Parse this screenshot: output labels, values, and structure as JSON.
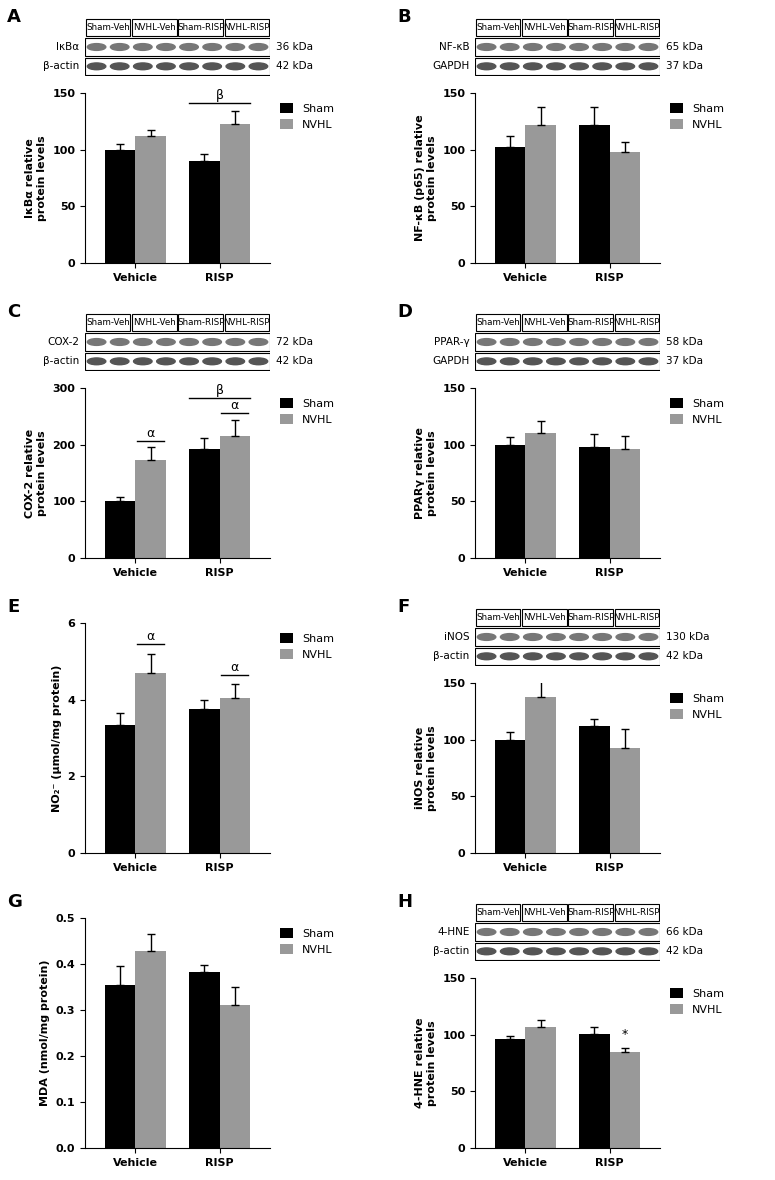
{
  "chart_data": [
    {
      "panel": "A",
      "type": "bar",
      "ylabel": "IκBα relative\nprotein levels",
      "categories": [
        "Vehicle",
        "RISP"
      ],
      "series": [
        {
          "name": "Sham",
          "color": "#000000",
          "values": [
            100,
            90
          ],
          "errors": [
            5,
            6
          ]
        },
        {
          "name": "NVHL",
          "color": "#999999",
          "values": [
            112,
            123
          ],
          "errors": [
            5,
            11
          ]
        }
      ],
      "ylim": [
        0,
        150
      ],
      "yticks": [
        0,
        50,
        100,
        150
      ],
      "legend": "upper right",
      "annotations": [
        {
          "text": "β",
          "category": "RISP"
        }
      ],
      "blot": {
        "lanes": [
          "Sham-Veh",
          "NVHL-Veh",
          "Sham-RISP",
          "NVHL-RISP"
        ],
        "bands": [
          {
            "protein": "IκBα",
            "size": "36 kDa"
          },
          {
            "protein": "β-actin",
            "size": "42 kDa"
          }
        ]
      }
    },
    {
      "panel": "B",
      "type": "bar",
      "ylabel": "NF-κB (p65) relative\nprotein levels",
      "categories": [
        "Vehicle",
        "RISP"
      ],
      "series": [
        {
          "name": "Sham",
          "color": "#000000",
          "values": [
            102,
            122
          ],
          "errors": [
            10,
            16
          ]
        },
        {
          "name": "NVHL",
          "color": "#999999",
          "values": [
            122,
            98
          ],
          "errors": [
            16,
            9
          ]
        }
      ],
      "ylim": [
        0,
        150
      ],
      "yticks": [
        0,
        50,
        100,
        150
      ],
      "legend": "upper right",
      "annotations": [],
      "blot": {
        "lanes": [
          "Sham-Veh",
          "NVHL-Veh",
          "Sham-RISP",
          "NVHL-RISP"
        ],
        "bands": [
          {
            "protein": "NF-κB",
            "size": "65 kDa"
          },
          {
            "protein": "GAPDH",
            "size": "37 kDa"
          }
        ]
      }
    },
    {
      "panel": "C",
      "type": "bar",
      "ylabel": "COX-2 relative\nprotein levels",
      "categories": [
        "Vehicle",
        "RISP"
      ],
      "series": [
        {
          "name": "Sham",
          "color": "#000000",
          "values": [
            100,
            192
          ],
          "errors": [
            8,
            20
          ]
        },
        {
          "name": "NVHL",
          "color": "#999999",
          "values": [
            173,
            216
          ],
          "errors": [
            22,
            28
          ]
        }
      ],
      "ylim": [
        0,
        300
      ],
      "yticks": [
        0,
        100,
        200,
        300
      ],
      "legend": "upper right",
      "annotations": [
        {
          "text": "α",
          "category": "Vehicle",
          "series": "NVHL"
        },
        {
          "text": "α",
          "category": "RISP",
          "series": "NVHL"
        },
        {
          "text": "β",
          "category": "RISP"
        }
      ],
      "blot": {
        "lanes": [
          "Sham-Veh",
          "NVHL-Veh",
          "Sham-RISP",
          "NVHL-RISP"
        ],
        "bands": [
          {
            "protein": "COX-2",
            "size": "72 kDa"
          },
          {
            "protein": "β-actin",
            "size": "42 kDa"
          }
        ]
      }
    },
    {
      "panel": "D",
      "type": "bar",
      "ylabel": "PPARγ relative\nprotein levels",
      "categories": [
        "Vehicle",
        "RISP"
      ],
      "series": [
        {
          "name": "Sham",
          "color": "#000000",
          "values": [
            100,
            98
          ],
          "errors": [
            7,
            11
          ]
        },
        {
          "name": "NVHL",
          "color": "#999999",
          "values": [
            110,
            96
          ],
          "errors": [
            11,
            12
          ]
        }
      ],
      "ylim": [
        0,
        150
      ],
      "yticks": [
        0,
        50,
        100,
        150
      ],
      "legend": "upper right",
      "annotations": [],
      "blot": {
        "lanes": [
          "Sham-Veh",
          "NVHL-Veh",
          "Sham-RISP",
          "NVHL-RISP"
        ],
        "bands": [
          {
            "protein": "PPAR-γ",
            "size": "58 kDa"
          },
          {
            "protein": "GAPDH",
            "size": "37 kDa"
          }
        ]
      }
    },
    {
      "panel": "E",
      "type": "bar",
      "ylabel": "NO₂⁻ (μmol/mg protein)",
      "categories": [
        "Vehicle",
        "RISP"
      ],
      "series": [
        {
          "name": "Sham",
          "color": "#000000",
          "values": [
            3.35,
            3.75
          ],
          "errors": [
            0.3,
            0.25
          ]
        },
        {
          "name": "NVHL",
          "color": "#999999",
          "values": [
            4.7,
            4.05
          ],
          "errors": [
            0.5,
            0.35
          ]
        }
      ],
      "ylim": [
        0,
        6
      ],
      "yticks": [
        0,
        2,
        4,
        6
      ],
      "legend": "upper right",
      "annotations": [
        {
          "text": "α",
          "category": "Vehicle",
          "series": "NVHL"
        },
        {
          "text": "α",
          "category": "RISP",
          "series": "NVHL"
        }
      ]
    },
    {
      "panel": "F",
      "type": "bar",
      "ylabel": "iNOS relative\nprotein levels",
      "categories": [
        "Vehicle",
        "RISP"
      ],
      "series": [
        {
          "name": "Sham",
          "color": "#000000",
          "values": [
            100,
            112
          ],
          "errors": [
            7,
            6
          ]
        },
        {
          "name": "NVHL",
          "color": "#999999",
          "values": [
            138,
            93
          ],
          "errors": [
            17,
            16
          ]
        }
      ],
      "ylim": [
        0,
        150
      ],
      "yticks": [
        0,
        50,
        100,
        150
      ],
      "legend": "upper right",
      "annotations": [],
      "blot": {
        "lanes": [
          "Sham-Veh",
          "NVHL-Veh",
          "Sham-RISP",
          "NVHL-RISP"
        ],
        "bands": [
          {
            "protein": "iNOS",
            "size": "130 kDa"
          },
          {
            "protein": "β-actin",
            "size": "42 kDa"
          }
        ]
      }
    },
    {
      "panel": "G",
      "type": "bar",
      "ylabel": "MDA (nmol/mg protein)",
      "categories": [
        "Vehicle",
        "RISP"
      ],
      "series": [
        {
          "name": "Sham",
          "color": "#000000",
          "values": [
            0.355,
            0.383
          ],
          "errors": [
            0.04,
            0.015
          ]
        },
        {
          "name": "NVHL",
          "color": "#999999",
          "values": [
            0.428,
            0.31
          ],
          "errors": [
            0.038,
            0.04
          ]
        }
      ],
      "ylim": [
        0.0,
        0.5
      ],
      "yticks": [
        0.0,
        0.1,
        0.2,
        0.3,
        0.4,
        0.5
      ],
      "legend": "upper right",
      "annotations": []
    },
    {
      "panel": "H",
      "type": "bar",
      "ylabel": "4-HNE relative\nprotein levels",
      "categories": [
        "Vehicle",
        "RISP"
      ],
      "series": [
        {
          "name": "Sham",
          "color": "#000000",
          "values": [
            96,
            101
          ],
          "errors": [
            3,
            6
          ]
        },
        {
          "name": "NVHL",
          "color": "#999999",
          "values": [
            107,
            85
          ],
          "errors": [
            6,
            3
          ]
        }
      ],
      "ylim": [
        0,
        150
      ],
      "yticks": [
        0,
        50,
        100,
        150
      ],
      "legend": "upper right",
      "annotations": [
        {
          "text": "*",
          "category": "RISP",
          "series": "NVHL"
        }
      ],
      "blot": {
        "lanes": [
          "Sham-Veh",
          "NVHL-Veh",
          "Sham-RISP",
          "NVHL-RISP"
        ],
        "bands": [
          {
            "protein": "4-HNE",
            "size": "66 kDa"
          },
          {
            "protein": "β-actin",
            "size": "42 kDa"
          }
        ]
      }
    }
  ]
}
